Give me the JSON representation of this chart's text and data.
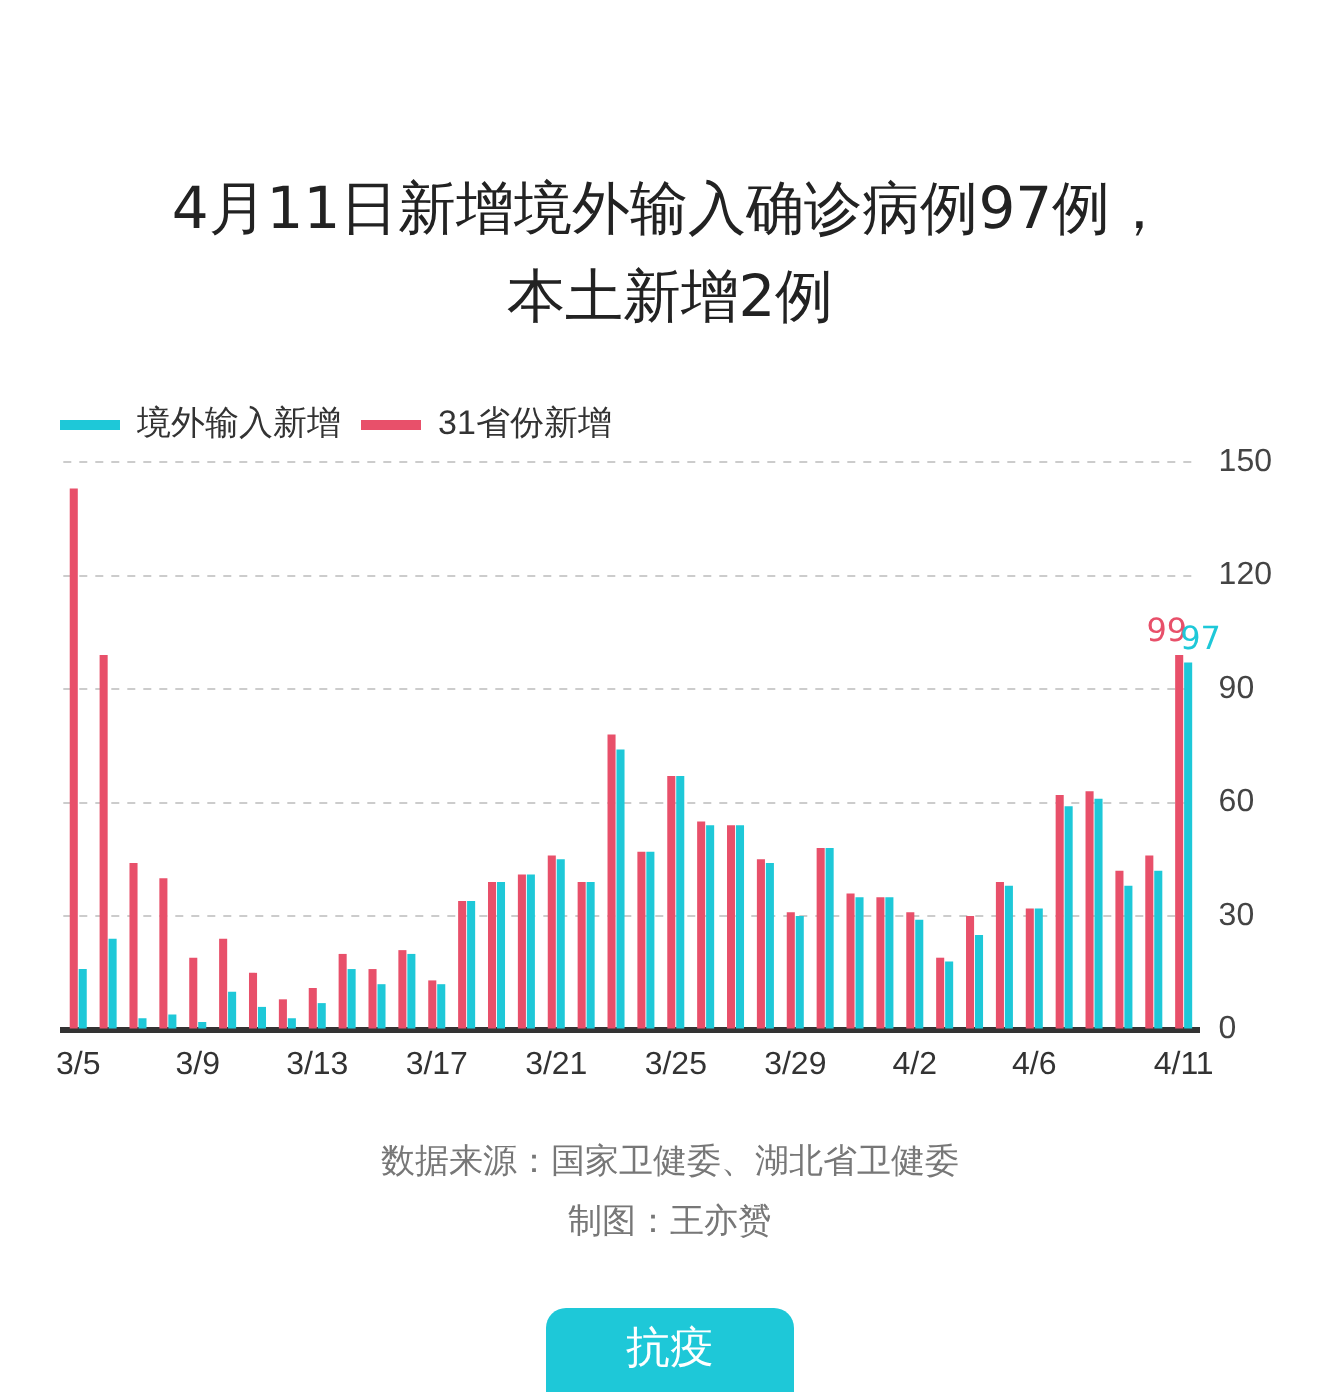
{
  "chart_data": {
    "type": "bar",
    "title": "4月11日新增境外输入确诊病例97例，本土新增2例",
    "categories": [
      "3/5",
      null,
      null,
      null,
      "3/9",
      null,
      null,
      null,
      "3/13",
      null,
      null,
      null,
      "3/17",
      null,
      null,
      null,
      "3/21",
      null,
      null,
      null,
      "3/25",
      null,
      null,
      null,
      "3/29",
      null,
      null,
      null,
      "4/2",
      null,
      null,
      null,
      "4/6",
      null,
      null,
      null,
      null,
      "4/11"
    ],
    "series": [
      {
        "name": "31省份新增",
        "color": "#e8506a",
        "values": [
          143,
          99,
          44,
          40,
          19,
          24,
          15,
          8,
          11,
          20,
          16,
          21,
          13,
          34,
          39,
          41,
          46,
          39,
          78,
          47,
          67,
          55,
          54,
          45,
          31,
          48,
          36,
          35,
          31,
          19,
          30,
          39,
          32,
          62,
          63,
          42,
          46,
          99
        ],
        "value_labels": [
          null,
          null,
          null,
          null,
          null,
          null,
          null,
          null,
          null,
          null,
          null,
          null,
          null,
          null,
          null,
          null,
          null,
          null,
          null,
          null,
          null,
          null,
          null,
          null,
          null,
          null,
          null,
          null,
          null,
          null,
          null,
          null,
          null,
          null,
          null,
          null,
          null,
          "99"
        ]
      },
      {
        "name": "境外输入新增",
        "color": "#1ec8d8",
        "values": [
          16,
          24,
          3,
          4,
          2,
          10,
          6,
          3,
          7,
          16,
          12,
          20,
          12,
          34,
          39,
          41,
          45,
          39,
          74,
          47,
          67,
          54,
          54,
          44,
          30,
          48,
          35,
          35,
          29,
          18,
          25,
          38,
          32,
          59,
          61,
          38,
          42,
          97
        ],
        "value_labels": [
          null,
          null,
          null,
          null,
          null,
          null,
          null,
          null,
          null,
          null,
          null,
          null,
          null,
          null,
          null,
          null,
          null,
          null,
          null,
          null,
          null,
          null,
          null,
          null,
          null,
          null,
          null,
          null,
          null,
          null,
          null,
          null,
          null,
          null,
          null,
          null,
          null,
          "97"
        ]
      }
    ],
    "ylim": [
      0,
      150
    ],
    "yticks": [
      0,
      30,
      60,
      90,
      120,
      150
    ],
    "grid": "y",
    "legend": "top left",
    "annotations": [
      "数据来源：国家卫健委、湖北省卫健委",
      "制图：王亦赟",
      "抗疫"
    ]
  }
}
